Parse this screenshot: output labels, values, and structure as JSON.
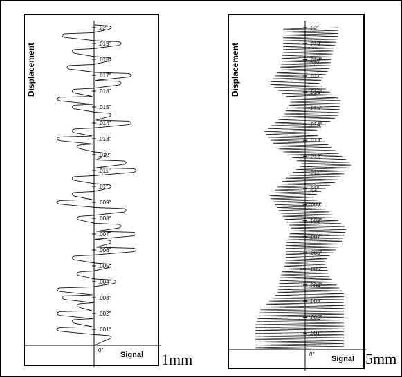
{
  "chart_data": [
    {
      "type": "line",
      "ylabel": "Displacement",
      "xlabel": "Signal",
      "annotation": "1mm",
      "y_ticks": [
        "0\"",
        ".001\"",
        ".002\"",
        ".003\"",
        ".004\"",
        ".005\"",
        ".006\"",
        ".007\"",
        ".008\"",
        ".009\"",
        ".01\"",
        ".011\"",
        ".012\"",
        ".013\"",
        ".014\"",
        ".015\"",
        ".016\"",
        ".017\"",
        ".018\"",
        ".019\"",
        ".02\""
      ],
      "ylim": [
        0,
        0.02
      ],
      "series": [
        {
          "values": [
            {
              "y": 0.0005,
              "x": 0.3
            },
            {
              "y": 0.001,
              "x": -0.7
            },
            {
              "y": 0.0015,
              "x": -0.4
            },
            {
              "y": 0.002,
              "x": -0.7
            },
            {
              "y": 0.0025,
              "x": -0.3
            },
            {
              "y": 0.003,
              "x": -0.6
            },
            {
              "y": 0.0035,
              "x": -0.7
            },
            {
              "y": 0.004,
              "x": 0.4
            },
            {
              "y": 0.0045,
              "x": -0.3
            },
            {
              "y": 0.005,
              "x": 0.3
            },
            {
              "y": 0.0055,
              "x": -0.4
            },
            {
              "y": 0.006,
              "x": 0.8
            },
            {
              "y": 0.0065,
              "x": 0.3
            },
            {
              "y": 0.007,
              "x": 0.8
            },
            {
              "y": 0.0075,
              "x": 0.5
            },
            {
              "y": 0.008,
              "x": -0.3
            },
            {
              "y": 0.0085,
              "x": 0.6
            },
            {
              "y": 0.009,
              "x": -0.7
            },
            {
              "y": 0.0095,
              "x": -0.4
            },
            {
              "y": 0.01,
              "x": 0.3
            },
            {
              "y": 0.0105,
              "x": -0.4
            },
            {
              "y": 0.011,
              "x": 0.8
            },
            {
              "y": 0.0115,
              "x": 0.6
            },
            {
              "y": 0.012,
              "x": 0.2
            },
            {
              "y": 0.0125,
              "x": -0.3
            },
            {
              "y": 0.013,
              "x": -0.7
            },
            {
              "y": 0.0135,
              "x": -0.4
            },
            {
              "y": 0.014,
              "x": 0.7
            },
            {
              "y": 0.0145,
              "x": 0.3
            },
            {
              "y": 0.015,
              "x": -0.4
            },
            {
              "y": 0.0155,
              "x": -0.7
            },
            {
              "y": 0.016,
              "x": -0.4
            },
            {
              "y": 0.0165,
              "x": 0.5
            },
            {
              "y": 0.017,
              "x": 0.7
            },
            {
              "y": 0.0175,
              "x": -0.5
            },
            {
              "y": 0.018,
              "x": 0.3
            },
            {
              "y": 0.0185,
              "x": -0.4
            },
            {
              "y": 0.019,
              "x": 0.5
            },
            {
              "y": 0.0195,
              "x": -0.6
            },
            {
              "y": 0.02,
              "x": 0.3
            }
          ]
        }
      ]
    },
    {
      "type": "line",
      "ylabel": "Displacement",
      "xlabel": "Signal",
      "annotation": "5mm",
      "y_ticks": [
        "0\"",
        ".001\"",
        ".002\"",
        ".003\"",
        ".004\"",
        ".005\"",
        ".006\"",
        ".007\"",
        ".008\"",
        ".009\"",
        ".01\"",
        ".011\"",
        ".012\"",
        ".013\"",
        ".014\"",
        ".015\"",
        ".016\"",
        ".017\"",
        ".018\"",
        ".019\"",
        ".02\""
      ],
      "ylim": [
        0,
        0.02
      ],
      "series": [
        {
          "envelope": [
            {
              "y": 0.0005,
              "center": -0.1,
              "half_width": 0.8
            },
            {
              "y": 0.0015,
              "center": -0.1,
              "half_width": 0.8
            },
            {
              "y": 0.0025,
              "center": -0.05,
              "half_width": 0.75
            },
            {
              "y": 0.0035,
              "center": 0.1,
              "half_width": 0.6
            },
            {
              "y": 0.0045,
              "center": 0.0,
              "half_width": 0.45
            },
            {
              "y": 0.0055,
              "center": 0.0,
              "half_width": 0.35
            },
            {
              "y": 0.0065,
              "center": 0.15,
              "half_width": 0.5
            },
            {
              "y": 0.0075,
              "center": 0.25,
              "half_width": 0.5
            },
            {
              "y": 0.0085,
              "center": 0.0,
              "half_width": 0.45
            },
            {
              "y": 0.0095,
              "center": -0.25,
              "half_width": 0.4
            },
            {
              "y": 0.0105,
              "center": 0.1,
              "half_width": 0.5
            },
            {
              "y": 0.0115,
              "center": 0.4,
              "half_width": 0.45
            },
            {
              "y": 0.0125,
              "center": 0.0,
              "half_width": 0.5
            },
            {
              "y": 0.0135,
              "center": -0.3,
              "half_width": 0.45
            },
            {
              "y": 0.0145,
              "center": 0.1,
              "half_width": 0.5
            },
            {
              "y": 0.0155,
              "center": 0.2,
              "half_width": 0.45
            },
            {
              "y": 0.0165,
              "center": -0.2,
              "half_width": 0.45
            },
            {
              "y": 0.0175,
              "center": 0.0,
              "half_width": 0.45
            },
            {
              "y": 0.0185,
              "center": 0.05,
              "half_width": 0.45
            },
            {
              "y": 0.0195,
              "center": 0.1,
              "half_width": 0.5
            }
          ]
        }
      ]
    }
  ]
}
